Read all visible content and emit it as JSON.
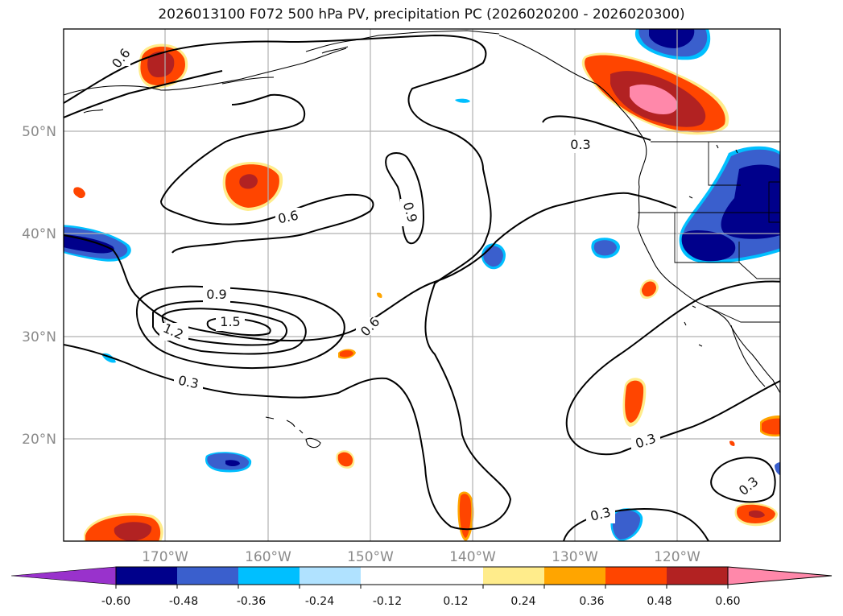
{
  "title": "2026013100 F072 500 hPa PV, precipitation PC (2026020200 - 2026020300)",
  "axes": {
    "lat_labels": [
      "50°N",
      "40°N",
      "30°N",
      "20°N"
    ],
    "lon_labels": [
      "170°W",
      "160°W",
      "150°W",
      "140°W",
      "130°W",
      "120°W"
    ],
    "lon_range": [
      -177.5,
      -107.5
    ],
    "lat_range": [
      10,
      60
    ]
  },
  "contour_labels": [
    "0.6",
    "0.6",
    "0.9",
    "0.9",
    "1.5",
    "1.2",
    "0.6",
    "0.3",
    "0.3",
    "0.3",
    "0.3",
    "0.3"
  ],
  "colorbar": {
    "ticks": [
      "-0.60",
      "-0.48",
      "-0.36",
      "-0.24",
      "-0.12",
      "0.12",
      "0.24",
      "0.36",
      "0.48",
      "0.60"
    ],
    "levels": [
      -0.72,
      -0.6,
      -0.48,
      -0.36,
      -0.24,
      -0.12,
      0.12,
      0.24,
      0.36,
      0.48,
      0.6,
      0.72
    ],
    "colors": [
      "#9932cc",
      "#00008b",
      "#3a5fcd",
      "#00bfff",
      "#b0e2ff",
      "#ffffff",
      "#ffec8b",
      "#ffa500",
      "#ff4500",
      "#b22222",
      "#ff88aa",
      "#ff88aa"
    ]
  },
  "chart_data": {
    "type": "map",
    "title": "2026013100 F072 500 hPa PV, precipitation PC (2026020200 - 2026020300)",
    "contour_variable": "500 hPa PV",
    "fill_variable": "precipitation PC",
    "contour_levels": [
      0.3,
      0.6,
      0.9,
      1.2,
      1.5
    ],
    "fill_levels": [
      -0.6,
      -0.48,
      -0.36,
      -0.24,
      -0.12,
      0.12,
      0.24,
      0.36,
      0.48,
      0.6
    ],
    "extend": "both",
    "xlabel": "",
    "ylabel": ""
  }
}
